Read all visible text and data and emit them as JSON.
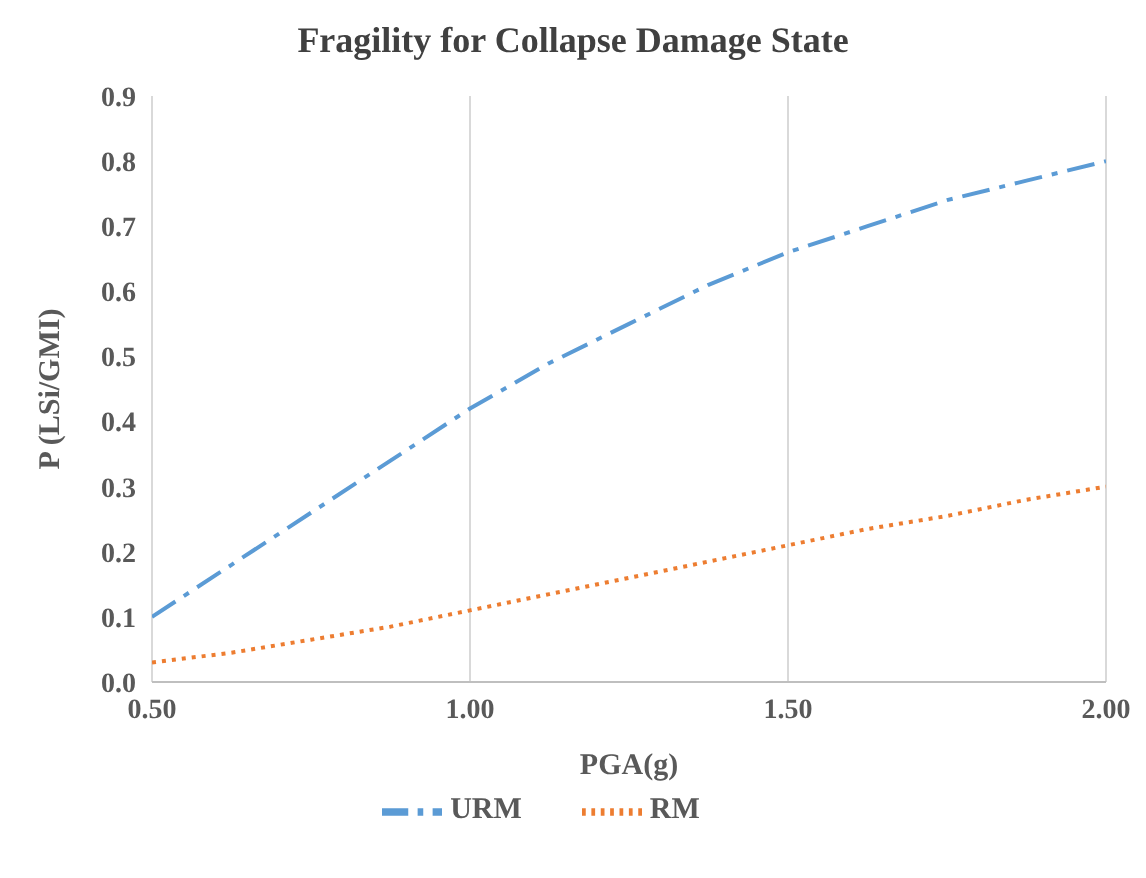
{
  "chart_data": {
    "type": "line",
    "title": "Fragility for Collapse Damage State",
    "xlabel": "PGA(g)",
    "ylabel": "P (LSi/GMI)",
    "x": [
      0.5,
      0.625,
      0.75,
      0.875,
      1.0,
      1.125,
      1.25,
      1.375,
      1.5,
      1.625,
      1.75,
      1.875,
      2.0
    ],
    "series": [
      {
        "name": "URM",
        "color": "#5b9bd5",
        "line_style": "dashed",
        "values": [
          0.1,
          0.18,
          0.26,
          0.34,
          0.42,
          0.49,
          0.55,
          0.61,
          0.66,
          0.7,
          0.74,
          0.77,
          0.8
        ]
      },
      {
        "name": "RM",
        "color": "#ed7d31",
        "line_style": "dotted",
        "values": [
          0.03,
          0.045,
          0.065,
          0.085,
          0.11,
          0.135,
          0.16,
          0.185,
          0.21,
          0.235,
          0.255,
          0.28,
          0.3
        ]
      }
    ],
    "xlim": [
      0.5,
      2.0
    ],
    "xticks": [
      {
        "value": 0.5,
        "label": "0.50"
      },
      {
        "value": 1.0,
        "label": "1.00"
      },
      {
        "value": 1.5,
        "label": "1.50"
      },
      {
        "value": 2.0,
        "label": "2.00"
      }
    ],
    "ylim": [
      0,
      0.9
    ],
    "yticks": [
      {
        "value": 0,
        "label": "0.0"
      },
      {
        "value": 0.1,
        "label": "0.1"
      },
      {
        "value": 0.2,
        "label": "0.2"
      },
      {
        "value": 0.3,
        "label": "0.3"
      },
      {
        "value": 0.4,
        "label": "0.4"
      },
      {
        "value": 0.5,
        "label": "0.5"
      },
      {
        "value": 0.6,
        "label": "0.6"
      },
      {
        "value": 0.7,
        "label": "0.7"
      },
      {
        "value": 0.8,
        "label": "0.8"
      },
      {
        "value": 0.9,
        "label": "0.9"
      }
    ],
    "grid": "x",
    "legend": "bottom",
    "marker": "none"
  }
}
